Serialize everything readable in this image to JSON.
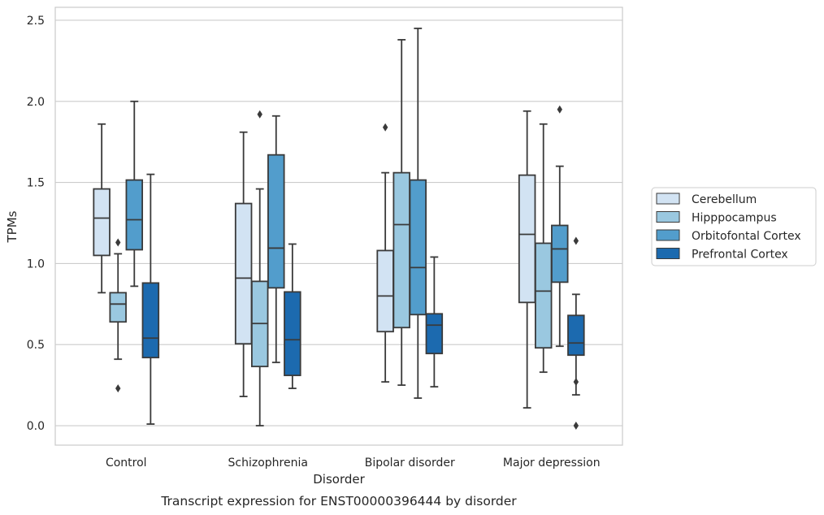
{
  "chart_data": {
    "type": "box",
    "xlabel": "Disorder",
    "ylabel": "TPMs",
    "caption": "Transcript expression for ENST00000396444 by disorder",
    "ylim": [
      -0.12,
      2.58
    ],
    "yticks": [
      "0.0",
      "0.5",
      "1.0",
      "1.5",
      "2.0",
      "2.5"
    ],
    "ytick_values": [
      0.0,
      0.5,
      1.0,
      1.5,
      2.0,
      2.5
    ],
    "grid": "horizontal",
    "legend_position": "right",
    "categories": [
      "Control",
      "Schizophrenia",
      "Bipolar disorder",
      "Major depression"
    ],
    "series": [
      {
        "name": "Cerebellum",
        "color": "#d2e3f3",
        "boxes": [
          {
            "whislo": 0.82,
            "q1": 1.05,
            "med": 1.28,
            "q3": 1.46,
            "whishi": 1.86,
            "fliers": []
          },
          {
            "whislo": 0.18,
            "q1": 0.505,
            "med": 0.91,
            "q3": 1.37,
            "whishi": 1.81,
            "fliers": []
          },
          {
            "whislo": 0.27,
            "q1": 0.58,
            "med": 0.8,
            "q3": 1.08,
            "whishi": 1.56,
            "fliers": [
              1.84
            ]
          },
          {
            "whislo": 0.11,
            "q1": 0.76,
            "med": 1.18,
            "q3": 1.545,
            "whishi": 1.94,
            "fliers": []
          }
        ]
      },
      {
        "name": "Hipppocampus",
        "color": "#9ac8e0",
        "boxes": [
          {
            "whislo": 0.41,
            "q1": 0.64,
            "med": 0.75,
            "q3": 0.82,
            "whishi": 1.06,
            "fliers": [
              1.13,
              0.23
            ]
          },
          {
            "whislo": 0.0,
            "q1": 0.365,
            "med": 0.63,
            "q3": 0.89,
            "whishi": 1.46,
            "fliers": [
              1.92
            ]
          },
          {
            "whislo": 0.25,
            "q1": 0.605,
            "med": 1.24,
            "q3": 1.56,
            "whishi": 2.38,
            "fliers": []
          },
          {
            "whislo": 0.33,
            "q1": 0.48,
            "med": 0.83,
            "q3": 1.125,
            "whishi": 1.86,
            "fliers": []
          }
        ]
      },
      {
        "name": "Orbitofontal Cortex",
        "color": "#529dcc",
        "boxes": [
          {
            "whislo": 0.86,
            "q1": 1.085,
            "med": 1.27,
            "q3": 1.515,
            "whishi": 2.0,
            "fliers": []
          },
          {
            "whislo": 0.39,
            "q1": 0.85,
            "med": 1.095,
            "q3": 1.67,
            "whishi": 1.91,
            "fliers": []
          },
          {
            "whislo": 0.17,
            "q1": 0.685,
            "med": 0.975,
            "q3": 1.515,
            "whishi": 2.45,
            "fliers": []
          },
          {
            "whislo": 0.49,
            "q1": 0.885,
            "med": 1.09,
            "q3": 1.235,
            "whishi": 1.6,
            "fliers": [
              1.95
            ]
          }
        ]
      },
      {
        "name": "Prefrontal Cortex",
        "color": "#1c6aaf",
        "boxes": [
          {
            "whislo": 0.01,
            "q1": 0.42,
            "med": 0.54,
            "q3": 0.88,
            "whishi": 1.55,
            "fliers": []
          },
          {
            "whislo": 0.23,
            "q1": 0.31,
            "med": 0.53,
            "q3": 0.825,
            "whishi": 1.12,
            "fliers": []
          },
          {
            "whislo": 0.24,
            "q1": 0.445,
            "med": 0.62,
            "q3": 0.69,
            "whishi": 1.04,
            "fliers": []
          },
          {
            "whislo": 0.19,
            "q1": 0.435,
            "med": 0.51,
            "q3": 0.68,
            "whishi": 0.81,
            "fliers": [
              1.14,
              0.27,
              0.0
            ]
          }
        ]
      }
    ]
  }
}
